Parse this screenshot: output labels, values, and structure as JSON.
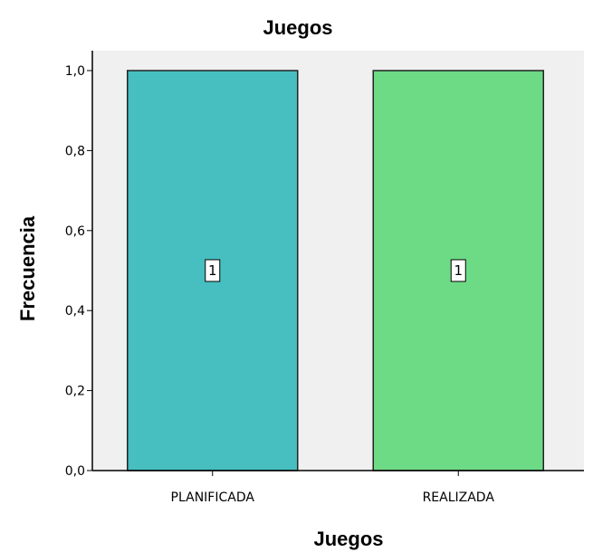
{
  "chart_data": {
    "type": "bar",
    "title": "Juegos",
    "xlabel": "Juegos",
    "ylabel": "Frecuencia",
    "categories": [
      "PLANIFICADA",
      "REALIZADA"
    ],
    "values": [
      1,
      1
    ],
    "data_labels": [
      "1",
      "1"
    ],
    "bar_colors": [
      "#47bfc1",
      "#6ddb85"
    ],
    "ylim": [
      0,
      1
    ],
    "yticks": [
      0.0,
      0.2,
      0.4,
      0.6,
      0.8,
      1.0
    ],
    "ytick_labels": [
      "0,0",
      "0,2",
      "0,4",
      "0,6",
      "0,8",
      "1,0"
    ],
    "plot_background": "#f0f0f0",
    "grid": false,
    "legend": "none"
  }
}
